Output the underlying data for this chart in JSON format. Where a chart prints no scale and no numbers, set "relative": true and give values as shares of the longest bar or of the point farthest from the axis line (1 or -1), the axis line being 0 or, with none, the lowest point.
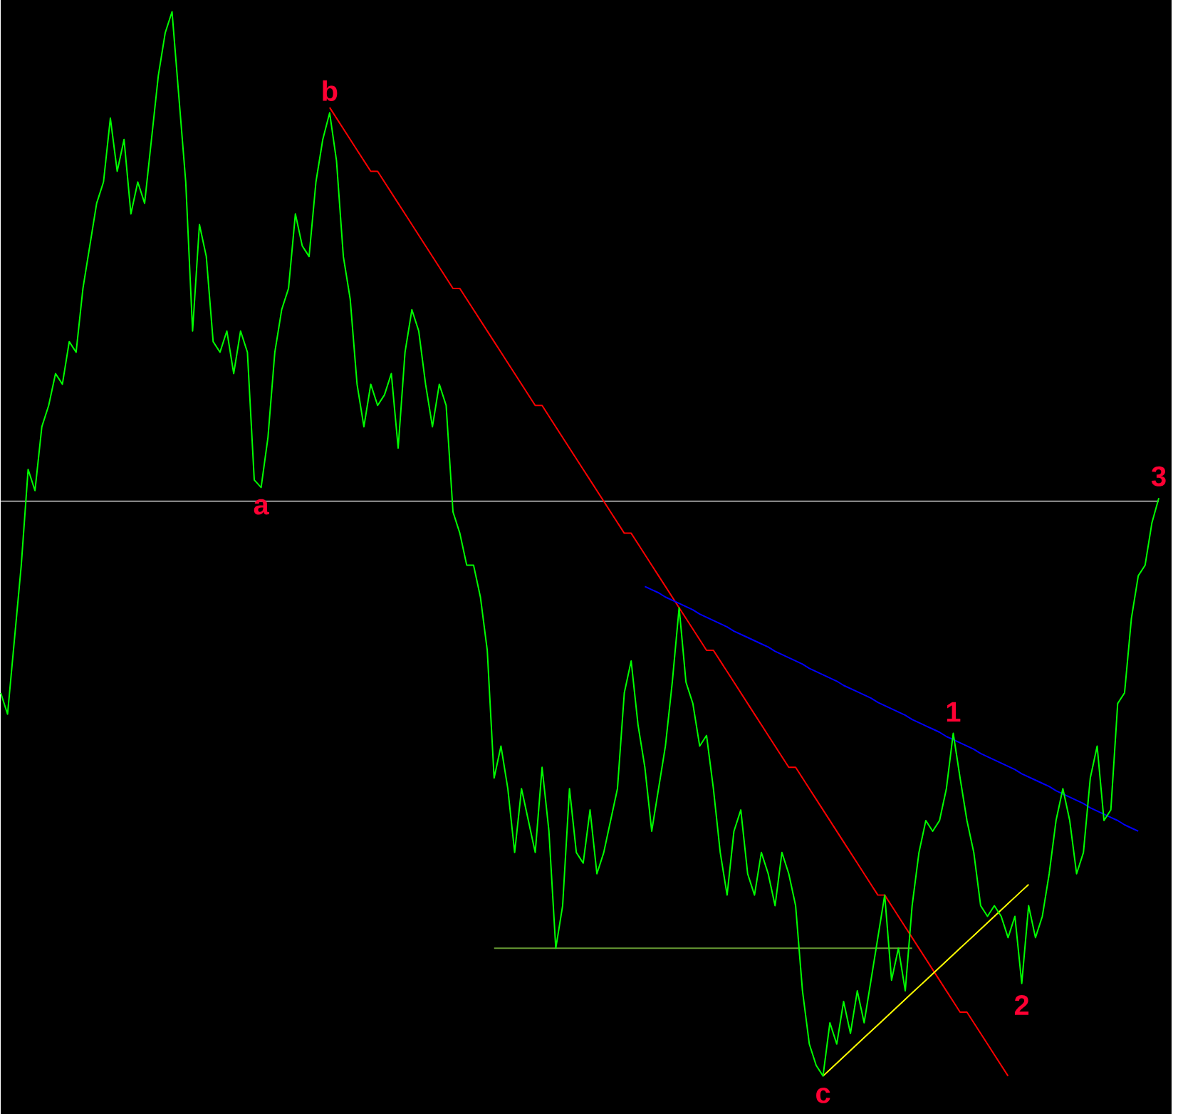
{
  "chart_data": {
    "type": "line",
    "relative": true,
    "tick_labels": false,
    "categories": [
      null,
      null,
      null,
      null,
      null,
      null,
      null,
      null,
      null,
      null,
      null,
      null,
      null,
      null,
      null,
      null,
      null,
      null,
      null,
      null,
      null,
      null,
      null,
      null,
      null,
      null,
      null,
      null,
      null,
      null,
      null,
      null,
      null,
      null,
      null,
      null,
      null,
      null,
      null,
      null,
      null,
      null,
      null,
      null,
      null,
      null,
      null,
      null,
      null,
      null,
      null,
      null,
      null,
      null,
      null,
      null,
      null,
      null,
      null,
      null,
      null,
      null,
      null,
      null,
      null,
      null,
      null,
      null,
      null,
      null,
      null,
      null,
      null,
      null,
      null,
      null,
      null,
      null,
      null,
      null,
      null,
      null,
      null,
      null,
      null,
      null,
      null,
      null,
      null,
      null,
      null,
      null,
      null,
      null,
      null,
      null,
      null,
      null,
      null,
      null,
      null,
      null,
      null,
      null,
      null,
      null,
      null,
      null,
      null,
      null,
      null,
      null,
      null,
      null,
      null,
      null,
      null,
      null,
      null,
      null,
      null,
      null,
      null,
      null,
      null,
      null,
      null,
      null,
      null,
      null,
      null,
      null,
      null,
      null,
      null,
      null,
      null,
      null,
      null,
      null,
      null,
      null,
      null,
      null,
      null,
      null,
      null,
      null,
      null,
      null,
      null,
      null,
      null,
      null,
      null,
      null,
      null,
      null,
      null,
      null,
      null,
      null,
      null,
      null,
      null,
      null,
      null,
      null,
      null,
      null
    ],
    "series": [
      {
        "color": "#00ff00",
        "values": [
          0.36,
          0.34,
          0.41,
          0.48,
          0.57,
          0.55,
          0.61,
          0.63,
          0.66,
          0.65,
          0.69,
          0.68,
          0.74,
          0.78,
          0.82,
          0.84,
          0.9,
          0.85,
          0.88,
          0.81,
          0.84,
          0.82,
          0.88,
          0.94,
          0.98,
          1.0,
          0.92,
          0.84,
          0.7,
          0.8,
          0.77,
          0.69,
          0.68,
          0.7,
          0.66,
          0.7,
          0.68,
          0.56,
          0.553,
          0.6,
          0.68,
          0.72,
          0.74,
          0.81,
          0.78,
          0.77,
          0.84,
          0.88,
          0.905,
          0.86,
          0.77,
          0.73,
          0.65,
          0.61,
          0.65,
          0.63,
          0.64,
          0.66,
          0.59,
          0.68,
          0.72,
          0.7,
          0.65,
          0.61,
          0.65,
          0.63,
          0.53,
          0.51,
          0.48,
          0.48,
          0.45,
          0.4,
          0.28,
          0.31,
          0.27,
          0.21,
          0.27,
          0.24,
          0.21,
          0.29,
          0.23,
          0.12,
          0.16,
          0.27,
          0.21,
          0.2,
          0.25,
          0.19,
          0.21,
          0.24,
          0.27,
          0.36,
          0.39,
          0.33,
          0.29,
          0.23,
          0.27,
          0.31,
          0.37,
          0.44,
          0.37,
          0.35,
          0.31,
          0.32,
          0.27,
          0.21,
          0.17,
          0.23,
          0.25,
          0.19,
          0.17,
          0.21,
          0.19,
          0.16,
          0.21,
          0.19,
          0.16,
          0.08,
          0.03,
          0.01,
          0.0,
          0.05,
          0.03,
          0.07,
          0.04,
          0.08,
          0.05,
          0.09,
          0.13,
          0.17,
          0.09,
          0.12,
          0.08,
          0.16,
          0.21,
          0.24,
          0.23,
          0.24,
          0.27,
          0.322,
          0.28,
          0.24,
          0.21,
          0.16,
          0.15,
          0.16,
          0.15,
          0.13,
          0.15,
          0.087,
          0.16,
          0.13,
          0.15,
          0.19,
          0.24,
          0.27,
          0.24,
          0.19,
          0.21,
          0.28,
          0.31,
          0.24,
          0.25,
          0.35,
          0.36,
          0.43,
          0.47,
          0.48,
          0.52,
          0.543
        ]
      },
      {
        "color": "#999999",
        "values": [
          0.54,
          0.54,
          0.54,
          0.54,
          0.54,
          0.54,
          0.54,
          0.54,
          0.54,
          0.54,
          0.54,
          0.54,
          0.54,
          0.54,
          0.54,
          0.54,
          0.54,
          0.54,
          0.54,
          0.54,
          0.54,
          0.54,
          0.54,
          0.54,
          0.54,
          0.54,
          0.54,
          0.54,
          0.54,
          0.54,
          0.54,
          0.54,
          0.54,
          0.54,
          0.54,
          0.54,
          0.54,
          0.54,
          0.54,
          0.54,
          0.54,
          0.54,
          0.54,
          0.54,
          0.54,
          0.54,
          0.54,
          0.54,
          0.54,
          0.54,
          0.54,
          0.54,
          0.54,
          0.54,
          0.54,
          0.54,
          0.54,
          0.54,
          0.54,
          0.54,
          0.54,
          0.54,
          0.54,
          0.54,
          0.54,
          0.54,
          0.54,
          0.54,
          0.54,
          0.54,
          0.54,
          0.54,
          0.54,
          0.54,
          0.54,
          0.54,
          0.54,
          0.54,
          0.54,
          0.54,
          0.54,
          0.54,
          0.54,
          0.54,
          0.54,
          0.54,
          0.54,
          0.54,
          0.54,
          0.54,
          0.54,
          0.54,
          0.54,
          0.54,
          0.54,
          0.54,
          0.54,
          0.54,
          0.54,
          0.54,
          0.54,
          0.54,
          0.54,
          0.54,
          0.54,
          0.54,
          0.54,
          0.54,
          0.54,
          0.54,
          0.54,
          0.54,
          0.54,
          0.54,
          0.54,
          0.54,
          0.54,
          0.54,
          0.54,
          0.54,
          0.54,
          0.54,
          0.54,
          0.54,
          0.54,
          0.54,
          0.54,
          0.54,
          0.54,
          0.54,
          0.54,
          0.54,
          0.54,
          0.54,
          0.54,
          0.54,
          0.54,
          0.54,
          0.54,
          0.54,
          0.54,
          0.54,
          0.54,
          0.54,
          0.54,
          0.54,
          0.54,
          0.54,
          0.54,
          0.54,
          0.54,
          0.54,
          0.54,
          0.54,
          0.54,
          0.54,
          0.54,
          0.54,
          0.54,
          0.54,
          0.54,
          0.54,
          0.54,
          0.54,
          0.54,
          0.54,
          0.54,
          0.54,
          0.54,
          0.54
        ]
      },
      {
        "color": "#ff0000",
        "values": [
          null,
          null,
          null,
          null,
          null,
          null,
          null,
          null,
          null,
          null,
          null,
          null,
          null,
          null,
          null,
          null,
          null,
          null,
          null,
          null,
          null,
          null,
          null,
          null,
          null,
          null,
          null,
          null,
          null,
          null,
          null,
          null,
          null,
          null,
          null,
          null,
          null,
          null,
          null,
          null,
          null,
          null,
          null,
          null,
          null,
          null,
          null,
          null,
          0.91,
          0.9,
          0.89,
          0.88,
          0.87,
          0.86,
          0.85,
          0.85,
          0.84,
          0.83,
          0.82,
          0.81,
          0.8,
          0.79,
          0.78,
          0.77,
          0.76,
          0.75,
          0.74,
          0.74,
          0.73,
          0.72,
          0.71,
          0.7,
          0.69,
          0.68,
          0.67,
          0.66,
          0.65,
          0.64,
          0.63,
          0.63,
          0.62,
          0.61,
          0.6,
          0.59,
          0.58,
          0.57,
          0.56,
          0.55,
          0.54,
          0.53,
          0.52,
          0.51,
          0.51,
          0.5,
          0.49,
          0.48,
          0.47,
          0.46,
          0.45,
          0.44,
          0.43,
          0.42,
          0.41,
          0.4,
          0.4,
          0.39,
          0.38,
          0.37,
          0.36,
          0.35,
          0.34,
          0.33,
          0.32,
          0.31,
          0.3,
          0.29,
          0.29,
          0.28,
          0.27,
          0.26,
          0.25,
          0.24,
          0.23,
          0.22,
          0.21,
          0.2,
          0.19,
          0.18,
          0.17,
          0.17,
          0.16,
          0.15,
          0.14,
          0.13,
          0.12,
          0.11,
          0.1,
          0.09,
          0.08,
          0.07,
          0.06,
          0.06,
          0.05,
          0.04,
          0.03,
          0.02,
          0.01,
          0.0,
          null,
          null,
          null,
          null,
          null,
          null,
          null,
          null,
          null,
          null,
          null,
          null,
          null,
          null,
          null,
          null,
          null,
          null,
          null,
          null,
          null,
          null
        ]
      },
      {
        "color": "#0000ff",
        "values": [
          null,
          null,
          null,
          null,
          null,
          null,
          null,
          null,
          null,
          null,
          null,
          null,
          null,
          null,
          null,
          null,
          null,
          null,
          null,
          null,
          null,
          null,
          null,
          null,
          null,
          null,
          null,
          null,
          null,
          null,
          null,
          null,
          null,
          null,
          null,
          null,
          null,
          null,
          null,
          null,
          null,
          null,
          null,
          null,
          null,
          null,
          null,
          null,
          null,
          null,
          null,
          null,
          null,
          null,
          null,
          null,
          null,
          null,
          null,
          null,
          null,
          null,
          null,
          null,
          null,
          null,
          null,
          null,
          null,
          null,
          null,
          null,
          null,
          null,
          null,
          null,
          null,
          null,
          null,
          null,
          null,
          null,
          null,
          null,
          null,
          null,
          null,
          null,
          null,
          null,
          null,
          null,
          null,
          null,
          0.46,
          0.457,
          0.454,
          0.45,
          0.447,
          0.444,
          0.441,
          0.438,
          0.434,
          0.431,
          0.428,
          0.425,
          0.422,
          0.418,
          0.415,
          0.412,
          0.409,
          0.406,
          0.403,
          0.399,
          0.396,
          0.393,
          0.39,
          0.387,
          0.383,
          0.38,
          0.377,
          0.374,
          0.371,
          0.367,
          0.364,
          0.361,
          0.358,
          0.355,
          0.351,
          0.348,
          0.345,
          0.342,
          0.339,
          0.335,
          0.332,
          0.329,
          0.326,
          0.323,
          0.319,
          0.316,
          0.313,
          0.31,
          0.307,
          0.303,
          0.3,
          0.297,
          0.294,
          0.291,
          0.288,
          0.284,
          0.281,
          0.278,
          0.275,
          0.272,
          0.268,
          0.265,
          0.262,
          0.259,
          0.256,
          0.252,
          0.249,
          0.246,
          0.243,
          0.24,
          0.236,
          0.233,
          0.23,
          null,
          null,
          null
        ]
      },
      {
        "color": "#ffff00",
        "values": [
          null,
          null,
          null,
          null,
          null,
          null,
          null,
          null,
          null,
          null,
          null,
          null,
          null,
          null,
          null,
          null,
          null,
          null,
          null,
          null,
          null,
          null,
          null,
          null,
          null,
          null,
          null,
          null,
          null,
          null,
          null,
          null,
          null,
          null,
          null,
          null,
          null,
          null,
          null,
          null,
          null,
          null,
          null,
          null,
          null,
          null,
          null,
          null,
          null,
          null,
          null,
          null,
          null,
          null,
          null,
          null,
          null,
          null,
          null,
          null,
          null,
          null,
          null,
          null,
          null,
          null,
          null,
          null,
          null,
          null,
          null,
          null,
          null,
          null,
          null,
          null,
          null,
          null,
          null,
          null,
          null,
          null,
          null,
          null,
          null,
          null,
          null,
          null,
          null,
          null,
          null,
          null,
          null,
          null,
          null,
          null,
          null,
          null,
          null,
          null,
          null,
          null,
          null,
          null,
          null,
          null,
          null,
          null,
          null,
          null,
          null,
          null,
          null,
          null,
          null,
          null,
          null,
          null,
          null,
          null,
          0.0,
          0.006,
          0.012,
          0.018,
          0.024,
          0.03,
          0.036,
          0.042,
          0.048,
          0.054,
          0.06,
          0.066,
          0.072,
          0.078,
          0.084,
          0.09,
          0.096,
          0.102,
          0.108,
          0.114,
          0.12,
          0.126,
          0.132,
          0.138,
          0.144,
          0.15,
          0.156,
          0.162,
          0.168,
          0.174,
          0.18,
          null,
          null,
          null,
          null,
          null,
          null,
          null,
          null,
          null,
          null,
          null,
          null,
          null,
          null,
          null,
          null,
          null,
          null,
          null
        ]
      },
      {
        "color": "#669933",
        "values": [
          null,
          null,
          null,
          null,
          null,
          null,
          null,
          null,
          null,
          null,
          null,
          null,
          null,
          null,
          null,
          null,
          null,
          null,
          null,
          null,
          null,
          null,
          null,
          null,
          null,
          null,
          null,
          null,
          null,
          null,
          null,
          null,
          null,
          null,
          null,
          null,
          null,
          null,
          null,
          null,
          null,
          null,
          null,
          null,
          null,
          null,
          null,
          null,
          null,
          null,
          null,
          null,
          null,
          null,
          null,
          null,
          null,
          null,
          null,
          null,
          null,
          null,
          null,
          null,
          null,
          null,
          null,
          null,
          null,
          null,
          null,
          null,
          0.12,
          0.12,
          0.12,
          0.12,
          0.12,
          0.12,
          0.12,
          0.12,
          0.12,
          0.12,
          0.12,
          0.12,
          0.12,
          0.12,
          0.12,
          0.12,
          0.12,
          0.12,
          0.12,
          0.12,
          0.12,
          0.12,
          0.12,
          0.12,
          0.12,
          0.12,
          0.12,
          0.12,
          0.12,
          0.12,
          0.12,
          0.12,
          0.12,
          0.12,
          0.12,
          0.12,
          0.12,
          0.12,
          0.12,
          0.12,
          0.12,
          0.12,
          0.12,
          0.12,
          0.12,
          0.12,
          0.12,
          0.12,
          0.12,
          0.12,
          0.12,
          0.12,
          0.12,
          0.12,
          0.12,
          0.12,
          0.12,
          0.12,
          0.12,
          0.12,
          0.12,
          0.12,
          null,
          null,
          null,
          null,
          null,
          null,
          null,
          null,
          null,
          null,
          null,
          null,
          null,
          null,
          null,
          null,
          null,
          null,
          null,
          null,
          null,
          null,
          null,
          null,
          null,
          null,
          null,
          null,
          null,
          null,
          null,
          null,
          null,
          null,
          null,
          null
        ]
      }
    ],
    "annotations": [
      {
        "text": "a",
        "y": 0.553
      },
      {
        "text": "b",
        "y": 0.905
      },
      {
        "text": "c",
        "y": 0.0
      },
      {
        "text": "1",
        "y": 0.322
      },
      {
        "text": "2",
        "y": 0.087
      },
      {
        "text": "3",
        "y": 0.543
      }
    ]
  }
}
